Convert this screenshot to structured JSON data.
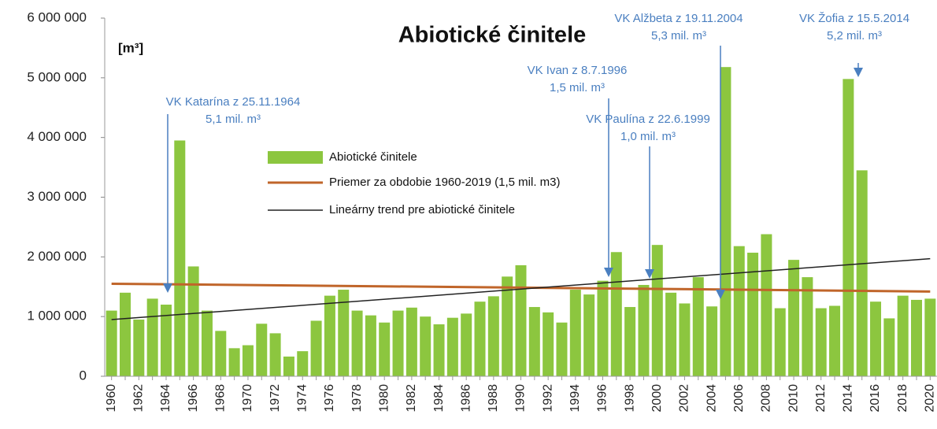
{
  "chart_data": {
    "type": "bar",
    "title": "Abiotické činitele",
    "y_unit": "[m³]",
    "categories": [
      "1960",
      null,
      "1962",
      null,
      "1964",
      null,
      "1966",
      null,
      "1968",
      null,
      "1970",
      null,
      "1972",
      null,
      "1974",
      null,
      "1976",
      null,
      "1978",
      null,
      "1980",
      null,
      "1982",
      null,
      "1984",
      null,
      "1986",
      null,
      "1988",
      null,
      "1990",
      null,
      "1992",
      null,
      "1994",
      null,
      "1996",
      null,
      "1998",
      null,
      "2000",
      null,
      "2002",
      null,
      "2004",
      null,
      "2006",
      null,
      "2008",
      null,
      "2010",
      null,
      "2012",
      null,
      "2014",
      null,
      "2016",
      null,
      "2018",
      null,
      "2020"
    ],
    "series": [
      {
        "name": "Abiotické činitele",
        "color": "#8cc63f",
        "values": [
          1100000,
          1400000,
          950000,
          1300000,
          1200000,
          3950000,
          1840000,
          1100000,
          760000,
          470000,
          520000,
          880000,
          720000,
          330000,
          420000,
          930000,
          1350000,
          1450000,
          1100000,
          1020000,
          900000,
          1100000,
          1150000,
          1000000,
          870000,
          980000,
          1050000,
          1250000,
          1340000,
          1670000,
          1860000,
          1160000,
          1070000,
          900000,
          1450000,
          1370000,
          1600000,
          2080000,
          1160000,
          1530000,
          2200000,
          1400000,
          1220000,
          1660000,
          1170000,
          5180000,
          2180000,
          2070000,
          2380000,
          1140000,
          1950000,
          1660000,
          1140000,
          1180000,
          4980000,
          3450000,
          1250000,
          970000,
          1350000,
          1280000,
          1300000
        ]
      },
      {
        "name": "Priemer za obdobie 1960-2019 (1,5 mil. m3)",
        "color": "#c0652a",
        "type": "line",
        "x": [
          1960,
          2020
        ],
        "values": [
          1550000,
          1420000
        ]
      },
      {
        "name": "Lineárny trend pre abiotické činitele",
        "color": "#222222",
        "type": "line",
        "x": [
          1960,
          2020
        ],
        "values": [
          950000,
          1970000
        ]
      }
    ],
    "ylim": [
      0,
      6000000
    ],
    "yticks": [
      0,
      {
        "value": 1000000,
        "label": "1 000 000"
      },
      {
        "value": 2000000,
        "label": "2 000 000"
      },
      {
        "value": 3000000,
        "label": "3 000 000"
      },
      {
        "value": 4000000,
        "label": "4 000 000"
      },
      {
        "value": 5000000,
        "label": "5 000 000"
      },
      {
        "value": 6000000,
        "label": "6 000 000"
      }
    ],
    "annotations": [
      [
        "VK Katarína z 25.11.1964",
        "5,1 mil. m³"
      ],
      [
        "VK Ivan z 8.7.1996",
        "1,5 mil. m³"
      ],
      [
        "VK Paulína z 22.6.1999",
        "1,0 mil. m³"
      ],
      [
        "VK Alžbeta z 19.11.2004",
        "5,3 mil. m³"
      ],
      [
        "VK Žofia z 15.5.2014",
        "5,2 mil. m³"
      ]
    ],
    "annotation_color": "#4a7fc0"
  }
}
